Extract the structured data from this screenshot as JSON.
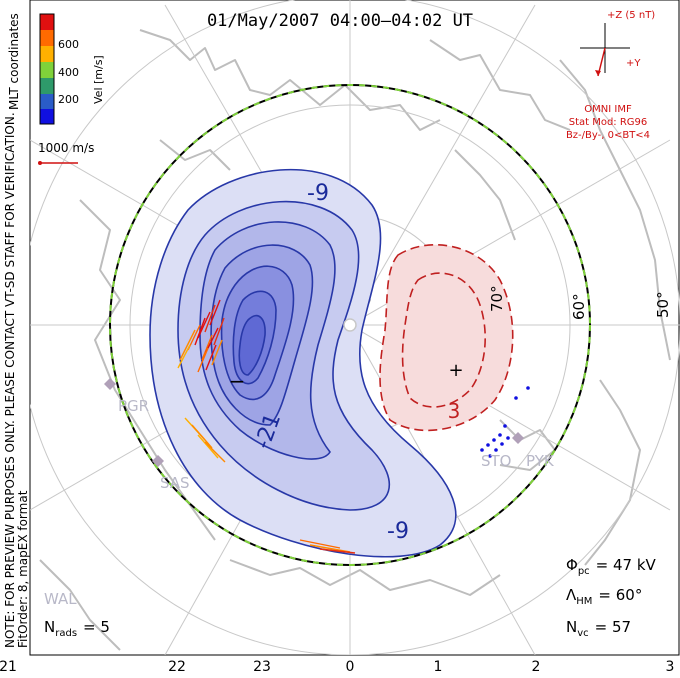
{
  "title": "01/May/2007 04:00–04:02 UT",
  "side_note": {
    "line1": "NOTE: FOR PREVIEW PURPOSES ONLY. PLEASE CONTACT VT-SD STAFF FOR VERIFICATION.",
    "line2": "FitOrder: 8, mapEX format"
  },
  "coords_label": "MLT coordinates",
  "colorbar": {
    "label": "Vel [m/s]",
    "ticks": [
      "600",
      "400",
      "200"
    ],
    "colors": [
      "#e01010",
      "#ff6a00",
      "#ffb000",
      "#7fd23a",
      "#2e9a6a",
      "#2a5cc8",
      "#1010e0"
    ]
  },
  "scale_vector": {
    "label": "1000 m/s",
    "color": "#d01010"
  },
  "imf": {
    "z_label": "+Z (5 nT)",
    "y_label": "+Y",
    "source": "OMNI IMF",
    "model": "Stat Mod: RG96",
    "condition": "Bz-/By-, 0<BT<4",
    "color": "#d01010"
  },
  "contours": {
    "negative_labels": [
      "-9",
      "-21",
      "-9"
    ],
    "positive_label": "3",
    "min_marker": "−",
    "max_marker": "+"
  },
  "lat_labels": [
    "70°",
    "60°",
    "50°"
  ],
  "stations": [
    "PGR",
    "SAS",
    "STO",
    "PYK",
    "WAL"
  ],
  "stats": {
    "phi_sym": "Φ",
    "phi_sub": "pc",
    "phi_val": "= 47 kV",
    "lambda_sym": "Λ",
    "lambda_sub": "HM",
    "lambda_val": "= 60°",
    "nvc_sym": "N",
    "nvc_sub": "vc",
    "nvc_val": "= 57",
    "nrads_sym": "N",
    "nrads_sub": "rads",
    "nrads_val": "= 5"
  },
  "mlt_ticks": [
    "21",
    "22",
    "23",
    "0",
    "1",
    "2",
    "3"
  ]
}
